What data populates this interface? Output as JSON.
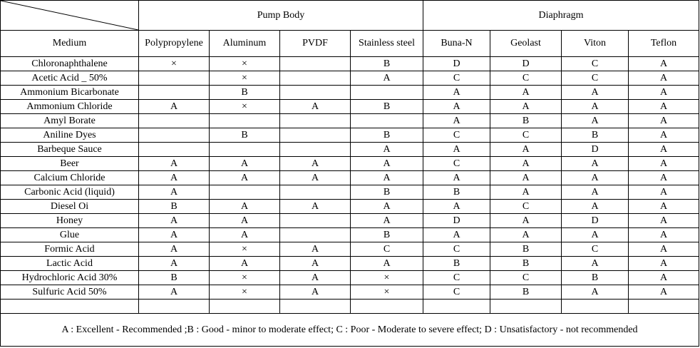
{
  "table": {
    "groups": {
      "pump_body": "Pump Body",
      "diaphragm": "Diaphragm"
    },
    "columns": [
      "Medium",
      "Polypropylene",
      "Aluminum",
      "PVDF",
      "Stainless steel",
      "Buna-N",
      "Geolast",
      "Viton",
      "Teflon"
    ],
    "rows": [
      [
        "Chloronaphthalene",
        "×",
        "×",
        "",
        "B",
        "D",
        "D",
        "C",
        "A"
      ],
      [
        "Acetic Acid _ 50%",
        "",
        "×",
        "",
        "A",
        "C",
        "C",
        "C",
        "A"
      ],
      [
        "Ammonium Bicarbonate",
        "",
        "B",
        "",
        "",
        "A",
        "A",
        "A",
        "A"
      ],
      [
        "Ammonium Chloride",
        "A",
        "×",
        "A",
        "B",
        "A",
        "A",
        "A",
        "A"
      ],
      [
        "Amyl Borate",
        "",
        "",
        "",
        "",
        "A",
        "B",
        "A",
        "A"
      ],
      [
        "Aniline Dyes",
        "",
        "B",
        "",
        "B",
        "C",
        "C",
        "B",
        "A"
      ],
      [
        "Barbeque Sauce",
        "",
        "",
        "",
        "A",
        "A",
        "A",
        "D",
        "A"
      ],
      [
        "Beer",
        "A",
        "A",
        "A",
        "A",
        "C",
        "A",
        "A",
        "A"
      ],
      [
        "Calcium Chloride",
        "A",
        "A",
        "A",
        "A",
        "A",
        "A",
        "A",
        "A"
      ],
      [
        "Carbonic Acid (liquid)",
        "A",
        "",
        "",
        "B",
        "B",
        "A",
        "A",
        "A"
      ],
      [
        "Diesel Oi",
        "B",
        "A",
        "A",
        "A",
        "A",
        "C",
        "A",
        "A"
      ],
      [
        "Honey",
        "A",
        "A",
        "",
        "A",
        "D",
        "A",
        "D",
        "A"
      ],
      [
        "Glue",
        "A",
        "A",
        "",
        "B",
        "A",
        "A",
        "A",
        "A"
      ],
      [
        "Formic Acid",
        "A",
        "×",
        "A",
        "C",
        "C",
        "B",
        "C",
        "A"
      ],
      [
        "Lactic Acid",
        "A",
        "A",
        "A",
        "A",
        "B",
        "B",
        "A",
        "A"
      ],
      [
        "Hydrochloric Acid 30%",
        "B",
        "×",
        "A",
        "×",
        "C",
        "C",
        "B",
        "A"
      ],
      [
        "Sulfuric Acid 50%",
        "A",
        "×",
        "A",
        "×",
        "C",
        "B",
        "A",
        "A"
      ]
    ],
    "legend": "A : Excellent - Recommended ;B : Good - minor to moderate effect; C : Poor - Moderate to severe effect; D : Unsatisfactory - not recommended"
  }
}
